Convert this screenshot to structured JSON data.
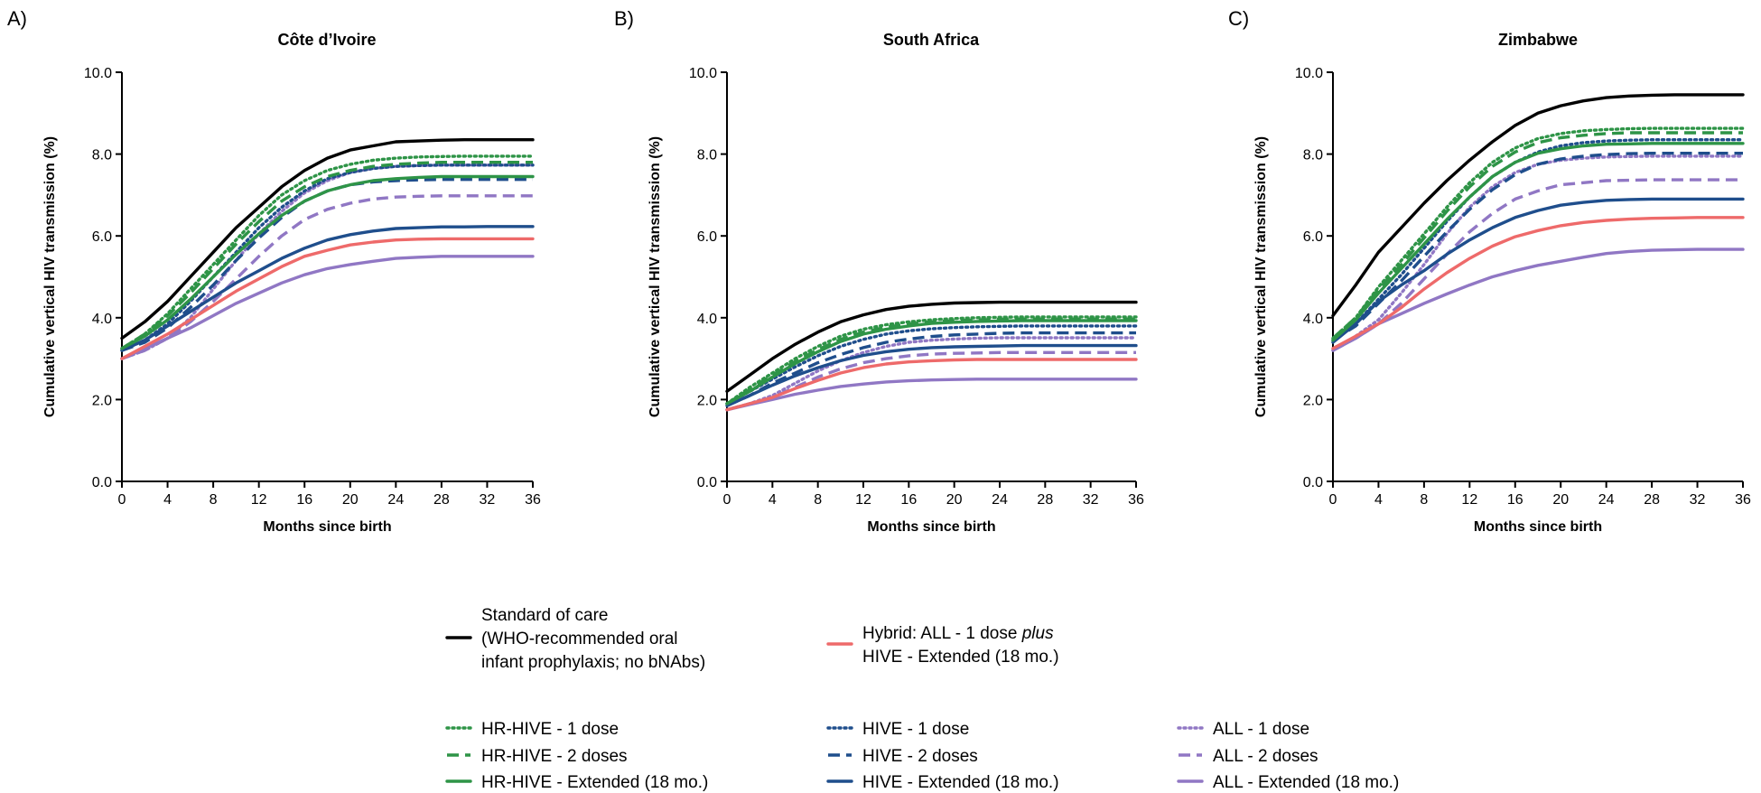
{
  "chart_data": [
    {
      "type": "line",
      "panel": "A)",
      "title": "Côte d’Ivoire",
      "xlabel": "Months since birth",
      "ylabel": "Cumulative vertical HIV transmission (%)",
      "xlim": [
        0,
        36
      ],
      "ylim": [
        0,
        10
      ],
      "xticks": [
        "0",
        "4",
        "8",
        "12",
        "16",
        "20",
        "24",
        "28",
        "32",
        "36"
      ],
      "yticks": [
        "0.0",
        "2.0",
        "4.0",
        "6.0",
        "8.0",
        "10.0"
      ],
      "x": [
        0,
        2,
        4,
        6,
        8,
        10,
        12,
        14,
        16,
        18,
        20,
        22,
        24,
        26,
        28,
        30,
        32,
        34,
        36
      ],
      "series": [
        {
          "key": "soc",
          "values": [
            3.5,
            3.9,
            4.4,
            5.0,
            5.6,
            6.2,
            6.7,
            7.2,
            7.6,
            7.9,
            8.1,
            8.2,
            8.3,
            8.32,
            8.34,
            8.35,
            8.35,
            8.35,
            8.35
          ]
        },
        {
          "key": "hr1",
          "values": [
            3.25,
            3.6,
            4.1,
            4.7,
            5.3,
            5.9,
            6.5,
            7.0,
            7.35,
            7.6,
            7.75,
            7.85,
            7.9,
            7.93,
            7.94,
            7.95,
            7.95,
            7.95,
            7.95
          ]
        },
        {
          "key": "hr2",
          "values": [
            3.25,
            3.6,
            4.05,
            4.6,
            5.2,
            5.8,
            6.35,
            6.85,
            7.2,
            7.45,
            7.6,
            7.7,
            7.75,
            7.78,
            7.8,
            7.8,
            7.8,
            7.8,
            7.8
          ]
        },
        {
          "key": "hrE",
          "values": [
            3.25,
            3.55,
            3.95,
            4.45,
            5.0,
            5.55,
            6.05,
            6.5,
            6.85,
            7.1,
            7.25,
            7.35,
            7.4,
            7.43,
            7.45,
            7.45,
            7.45,
            7.45,
            7.45
          ]
        },
        {
          "key": "h1",
          "values": [
            3.2,
            3.45,
            3.85,
            4.4,
            5.0,
            5.6,
            6.2,
            6.7,
            7.1,
            7.4,
            7.55,
            7.65,
            7.7,
            7.72,
            7.73,
            7.73,
            7.73,
            7.73,
            7.73
          ]
        },
        {
          "key": "h2",
          "values": [
            3.2,
            3.4,
            3.75,
            4.25,
            4.8,
            5.4,
            5.95,
            6.45,
            6.85,
            7.1,
            7.25,
            7.32,
            7.35,
            7.37,
            7.38,
            7.38,
            7.38,
            7.38,
            7.38
          ]
        },
        {
          "key": "hE",
          "values": [
            3.2,
            3.45,
            3.8,
            4.15,
            4.5,
            4.85,
            5.15,
            5.45,
            5.7,
            5.9,
            6.03,
            6.12,
            6.18,
            6.2,
            6.22,
            6.22,
            6.23,
            6.23,
            6.23
          ]
        },
        {
          "key": "a1",
          "values": [
            3.0,
            3.2,
            3.5,
            4.0,
            4.7,
            5.4,
            6.05,
            6.6,
            7.05,
            7.35,
            7.55,
            7.65,
            7.7,
            7.72,
            7.73,
            7.73,
            7.73,
            7.73,
            7.73
          ]
        },
        {
          "key": "a2",
          "values": [
            3.0,
            3.2,
            3.5,
            3.9,
            4.4,
            4.95,
            5.5,
            6.0,
            6.4,
            6.65,
            6.8,
            6.9,
            6.95,
            6.97,
            6.98,
            6.98,
            6.98,
            6.98,
            6.98
          ]
        },
        {
          "key": "aE",
          "values": [
            3.0,
            3.25,
            3.5,
            3.75,
            4.05,
            4.35,
            4.6,
            4.85,
            5.05,
            5.2,
            5.3,
            5.38,
            5.45,
            5.48,
            5.5,
            5.5,
            5.5,
            5.5,
            5.5
          ]
        },
        {
          "key": "hyb",
          "values": [
            3.0,
            3.3,
            3.6,
            3.95,
            4.3,
            4.65,
            4.95,
            5.25,
            5.5,
            5.65,
            5.78,
            5.85,
            5.9,
            5.92,
            5.93,
            5.93,
            5.93,
            5.93,
            5.93
          ]
        }
      ]
    },
    {
      "type": "line",
      "panel": "B)",
      "title": "South Africa",
      "xlabel": "Months since birth",
      "ylabel": "Cumulative vertical HIV transmission (%)",
      "xlim": [
        0,
        36
      ],
      "ylim": [
        0,
        10
      ],
      "xticks": [
        "0",
        "4",
        "8",
        "12",
        "16",
        "20",
        "24",
        "28",
        "32",
        "36"
      ],
      "yticks": [
        "0.0",
        "2.0",
        "4.0",
        "6.0",
        "8.0",
        "10.0"
      ],
      "x": [
        0,
        2,
        4,
        6,
        8,
        10,
        12,
        14,
        16,
        18,
        20,
        22,
        24,
        26,
        28,
        30,
        32,
        34,
        36
      ],
      "series": [
        {
          "key": "soc",
          "values": [
            2.2,
            2.6,
            3.0,
            3.35,
            3.65,
            3.9,
            4.07,
            4.2,
            4.28,
            4.33,
            4.36,
            4.37,
            4.38,
            4.38,
            4.38,
            4.38,
            4.38,
            4.38,
            4.38
          ]
        },
        {
          "key": "hr1",
          "values": [
            1.9,
            2.3,
            2.65,
            3.0,
            3.3,
            3.55,
            3.72,
            3.83,
            3.9,
            3.95,
            3.98,
            4.0,
            4.01,
            4.02,
            4.02,
            4.02,
            4.02,
            4.02,
            4.02
          ]
        },
        {
          "key": "hr2",
          "values": [
            1.9,
            2.25,
            2.6,
            2.93,
            3.22,
            3.47,
            3.65,
            3.77,
            3.85,
            3.9,
            3.93,
            3.95,
            3.96,
            3.97,
            3.97,
            3.97,
            3.97,
            3.97,
            3.97
          ]
        },
        {
          "key": "hrE",
          "values": [
            1.9,
            2.2,
            2.55,
            2.88,
            3.17,
            3.42,
            3.6,
            3.72,
            3.8,
            3.86,
            3.89,
            3.91,
            3.92,
            3.93,
            3.93,
            3.93,
            3.93,
            3.93,
            3.93
          ]
        },
        {
          "key": "h1",
          "values": [
            1.9,
            2.2,
            2.5,
            2.8,
            3.07,
            3.3,
            3.47,
            3.6,
            3.68,
            3.73,
            3.76,
            3.78,
            3.79,
            3.8,
            3.8,
            3.8,
            3.8,
            3.8,
            3.8
          ]
        },
        {
          "key": "h2",
          "values": [
            1.85,
            2.1,
            2.4,
            2.65,
            2.9,
            3.1,
            3.27,
            3.4,
            3.48,
            3.54,
            3.58,
            3.6,
            3.62,
            3.63,
            3.63,
            3.63,
            3.63,
            3.63,
            3.63
          ]
        },
        {
          "key": "hE",
          "values": [
            1.85,
            2.1,
            2.35,
            2.58,
            2.78,
            2.95,
            3.08,
            3.17,
            3.23,
            3.27,
            3.29,
            3.3,
            3.31,
            3.32,
            3.32,
            3.32,
            3.32,
            3.32,
            3.32
          ]
        },
        {
          "key": "a1",
          "values": [
            1.75,
            1.9,
            2.1,
            2.4,
            2.7,
            2.95,
            3.15,
            3.3,
            3.4,
            3.45,
            3.48,
            3.5,
            3.51,
            3.51,
            3.51,
            3.51,
            3.51,
            3.51,
            3.51
          ]
        },
        {
          "key": "a2",
          "values": [
            1.75,
            1.9,
            2.05,
            2.3,
            2.55,
            2.75,
            2.9,
            3.0,
            3.07,
            3.11,
            3.13,
            3.14,
            3.15,
            3.15,
            3.15,
            3.15,
            3.15,
            3.15,
            3.15
          ]
        },
        {
          "key": "aE",
          "values": [
            1.75,
            1.88,
            2.0,
            2.13,
            2.23,
            2.32,
            2.38,
            2.43,
            2.46,
            2.48,
            2.49,
            2.5,
            2.5,
            2.5,
            2.5,
            2.5,
            2.5,
            2.5,
            2.5
          ]
        },
        {
          "key": "hyb",
          "values": [
            1.75,
            1.9,
            2.05,
            2.27,
            2.47,
            2.65,
            2.78,
            2.87,
            2.92,
            2.95,
            2.97,
            2.98,
            2.98,
            2.98,
            2.98,
            2.98,
            2.98,
            2.98,
            2.98
          ]
        }
      ]
    },
    {
      "type": "line",
      "panel": "C)",
      "title": "Zimbabwe",
      "xlabel": "Months since birth",
      "ylabel": "Cumulative vertical HIV transmission (%)",
      "xlim": [
        0,
        36
      ],
      "ylim": [
        0,
        10
      ],
      "xticks": [
        "0",
        "4",
        "8",
        "12",
        "16",
        "20",
        "24",
        "28",
        "32",
        "36"
      ],
      "yticks": [
        "0.0",
        "2.0",
        "4.0",
        "6.0",
        "8.0",
        "10.0"
      ],
      "x": [
        0,
        2,
        4,
        6,
        8,
        10,
        12,
        14,
        16,
        18,
        20,
        22,
        24,
        26,
        28,
        30,
        32,
        34,
        36
      ],
      "series": [
        {
          "key": "soc",
          "values": [
            4.05,
            4.8,
            5.6,
            6.2,
            6.8,
            7.35,
            7.85,
            8.3,
            8.7,
            9.0,
            9.18,
            9.3,
            9.38,
            9.42,
            9.44,
            9.45,
            9.45,
            9.45,
            9.45
          ]
        },
        {
          "key": "hr1",
          "values": [
            3.5,
            4.0,
            4.75,
            5.4,
            6.05,
            6.7,
            7.3,
            7.8,
            8.15,
            8.38,
            8.5,
            8.57,
            8.6,
            8.62,
            8.63,
            8.63,
            8.63,
            8.63,
            8.63
          ]
        },
        {
          "key": "hr2",
          "values": [
            3.5,
            4.0,
            4.7,
            5.3,
            5.95,
            6.6,
            7.2,
            7.7,
            8.05,
            8.28,
            8.4,
            8.46,
            8.5,
            8.52,
            8.52,
            8.52,
            8.52,
            8.52,
            8.52
          ]
        },
        {
          "key": "hrE",
          "values": [
            3.45,
            3.95,
            4.6,
            5.2,
            5.8,
            6.4,
            6.95,
            7.45,
            7.8,
            8.02,
            8.13,
            8.2,
            8.24,
            8.25,
            8.26,
            8.26,
            8.26,
            8.26,
            8.26
          ]
        },
        {
          "key": "h1",
          "values": [
            3.45,
            3.85,
            4.45,
            5.05,
            5.7,
            6.35,
            6.95,
            7.45,
            7.8,
            8.05,
            8.2,
            8.28,
            8.32,
            8.34,
            8.35,
            8.35,
            8.35,
            8.35,
            8.35
          ]
        },
        {
          "key": "h2",
          "values": [
            3.45,
            3.8,
            4.35,
            4.9,
            5.5,
            6.1,
            6.65,
            7.13,
            7.5,
            7.75,
            7.88,
            7.95,
            7.99,
            8.01,
            8.02,
            8.02,
            8.02,
            8.02,
            8.02
          ]
        },
        {
          "key": "hE",
          "values": [
            3.4,
            3.85,
            4.4,
            4.8,
            5.15,
            5.55,
            5.9,
            6.2,
            6.45,
            6.62,
            6.75,
            6.82,
            6.87,
            6.89,
            6.9,
            6.9,
            6.9,
            6.9,
            6.9
          ]
        },
        {
          "key": "a1",
          "values": [
            3.2,
            3.55,
            3.95,
            4.6,
            5.3,
            6.05,
            6.7,
            7.2,
            7.55,
            7.75,
            7.85,
            7.9,
            7.93,
            7.94,
            7.95,
            7.95,
            7.95,
            7.95,
            7.95
          ]
        },
        {
          "key": "a2",
          "values": [
            3.2,
            3.5,
            3.85,
            4.35,
            4.95,
            5.55,
            6.1,
            6.55,
            6.9,
            7.1,
            7.25,
            7.3,
            7.35,
            7.36,
            7.37,
            7.37,
            7.37,
            7.37,
            7.37
          ]
        },
        {
          "key": "aE",
          "values": [
            3.2,
            3.5,
            3.85,
            4.1,
            4.35,
            4.58,
            4.8,
            5.0,
            5.15,
            5.28,
            5.38,
            5.48,
            5.57,
            5.62,
            5.65,
            5.66,
            5.67,
            5.67,
            5.67
          ]
        },
        {
          "key": "hyb",
          "values": [
            3.25,
            3.55,
            3.85,
            4.25,
            4.7,
            5.1,
            5.45,
            5.75,
            5.98,
            6.13,
            6.25,
            6.33,
            6.38,
            6.41,
            6.43,
            6.44,
            6.45,
            6.45,
            6.45
          ]
        }
      ]
    }
  ],
  "legend": {
    "items": [
      {
        "key": "soc",
        "lines": [
          "Standard of care",
          "(WHO-recommended oral",
          "infant prophylaxis; no bNAbs)"
        ]
      },
      {
        "key": "hyb",
        "lines": [
          "Hybrid: ALL - 1 dose ",
          "HIVE - Extended (18 mo.)"
        ],
        "italic": "plus"
      },
      {
        "key": "hr1",
        "lines": [
          "HR-HIVE - 1 dose"
        ]
      },
      {
        "key": "hr2",
        "lines": [
          "HR-HIVE - 2 doses"
        ]
      },
      {
        "key": "hrE",
        "lines": [
          "HR-HIVE - Extended (18 mo.)"
        ]
      },
      {
        "key": "h1",
        "lines": [
          "HIVE - 1 dose"
        ]
      },
      {
        "key": "h2",
        "lines": [
          "HIVE - 2 doses"
        ]
      },
      {
        "key": "hE",
        "lines": [
          "HIVE - Extended (18 mo.)"
        ]
      },
      {
        "key": "a1",
        "lines": [
          "ALL - 1 dose"
        ]
      },
      {
        "key": "a2",
        "lines": [
          "ALL - 2 doses"
        ]
      },
      {
        "key": "aE",
        "lines": [
          "ALL - Extended (18 mo.)"
        ]
      }
    ]
  },
  "styles": {
    "soc": {
      "color": "#000000",
      "dash": "solid"
    },
    "hr1": {
      "color": "#2e9447",
      "dash": "dotted"
    },
    "hr2": {
      "color": "#2e9447",
      "dash": "dashed"
    },
    "hrE": {
      "color": "#2e9447",
      "dash": "solid"
    },
    "h1": {
      "color": "#1f4e8c",
      "dash": "dotted"
    },
    "h2": {
      "color": "#1f4e8c",
      "dash": "dashed"
    },
    "hE": {
      "color": "#1f4e8c",
      "dash": "solid"
    },
    "a1": {
      "color": "#9077c4",
      "dash": "dotted"
    },
    "a2": {
      "color": "#9077c4",
      "dash": "dashed"
    },
    "aE": {
      "color": "#9077c4",
      "dash": "solid"
    },
    "hyb": {
      "color": "#ee6a6a",
      "dash": "solid"
    }
  }
}
